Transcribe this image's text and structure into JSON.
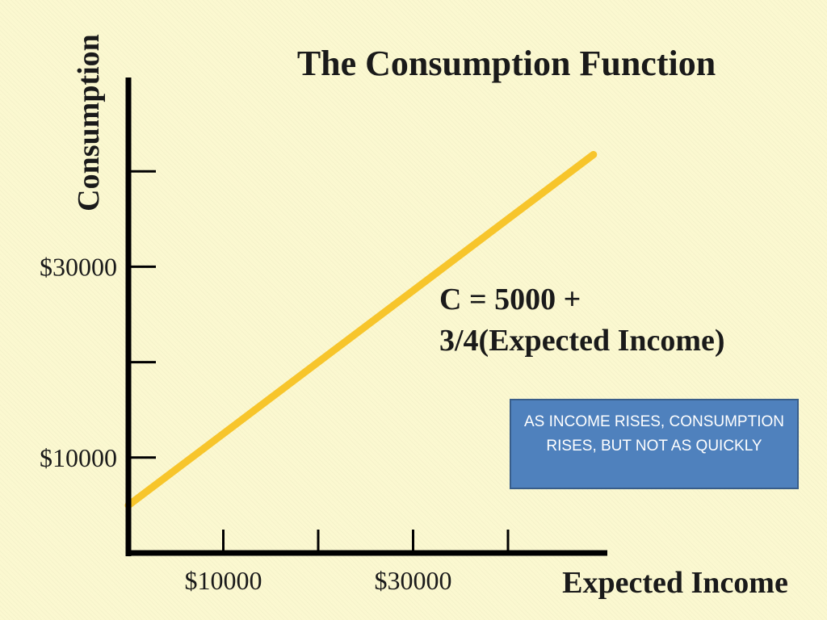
{
  "colors": {
    "background": "#fbf8d0",
    "line": "#f7c52b",
    "axis": "#000000",
    "note_box": "#4f81bd",
    "note_border": "#385d8a",
    "note_text": "#ffffff"
  },
  "chart_data": {
    "type": "line",
    "title": "The Consumption Function",
    "xlabel": "Expected Income",
    "ylabel": "Consumption",
    "xlim": [
      0,
      50000
    ],
    "ylim": [
      0,
      50000
    ],
    "x_ticks": [
      10000,
      20000,
      30000,
      40000
    ],
    "x_tick_labels": [
      "$10000",
      "",
      "$30000",
      ""
    ],
    "y_ticks": [
      10000,
      20000,
      30000,
      40000
    ],
    "y_tick_labels": [
      "$10000",
      "",
      "$30000",
      ""
    ],
    "series": [
      {
        "x": [
          0,
          49000
        ],
        "y": [
          5000,
          41750
        ]
      }
    ],
    "annotations": [
      {
        "lines": [
          "C = 5000 +",
          "3/4(Expected Income)"
        ]
      }
    ],
    "grid": false
  },
  "note": {
    "text": "AS INCOME RISES, CONSUMPTION RISES, BUT NOT AS QUICKLY"
  }
}
